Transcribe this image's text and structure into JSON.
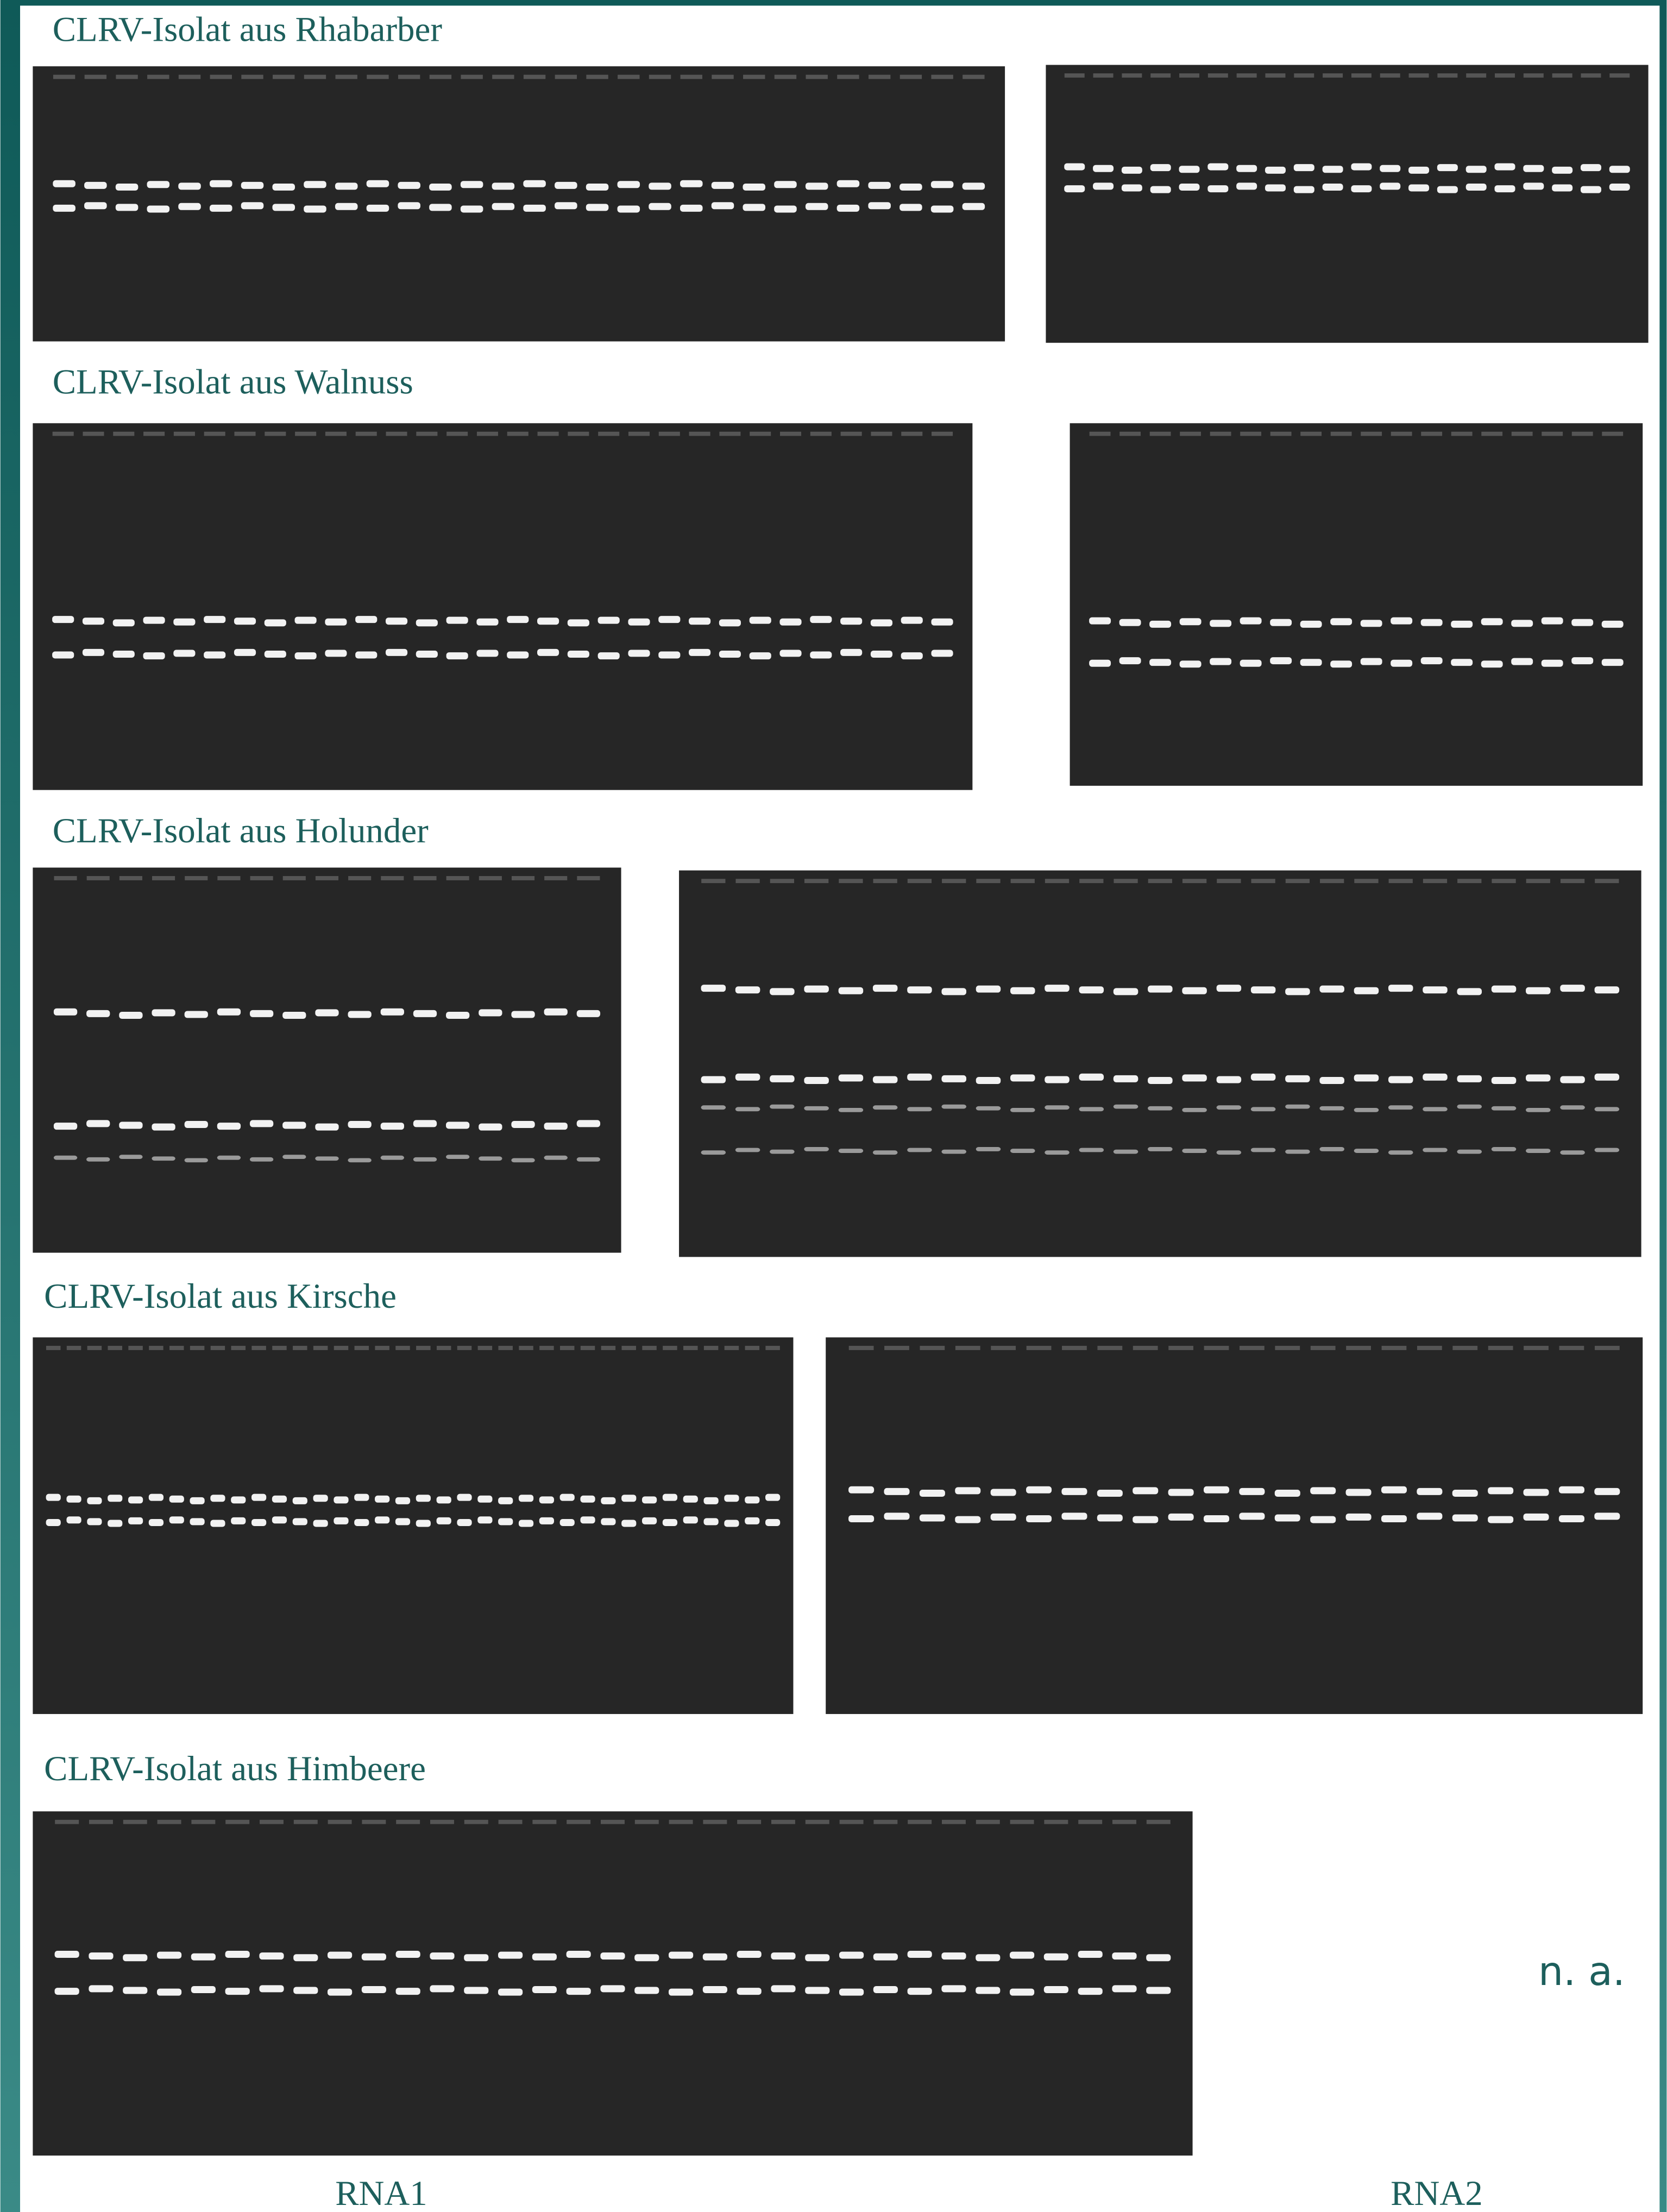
{
  "sections": [
    {
      "title": "CLRV-Isolat aus Rhabarber"
    },
    {
      "title": "CLRV-Isolat aus Walnuss"
    },
    {
      "title": "CLRV-Isolat aus Holunder"
    },
    {
      "title": "CLRV-Isolat aus Kirsche"
    },
    {
      "title": "CLRV-Isolat aus Himbeere"
    }
  ],
  "not_available": "n. a.",
  "column_labels": [
    "RNA1",
    "RNA2"
  ]
}
